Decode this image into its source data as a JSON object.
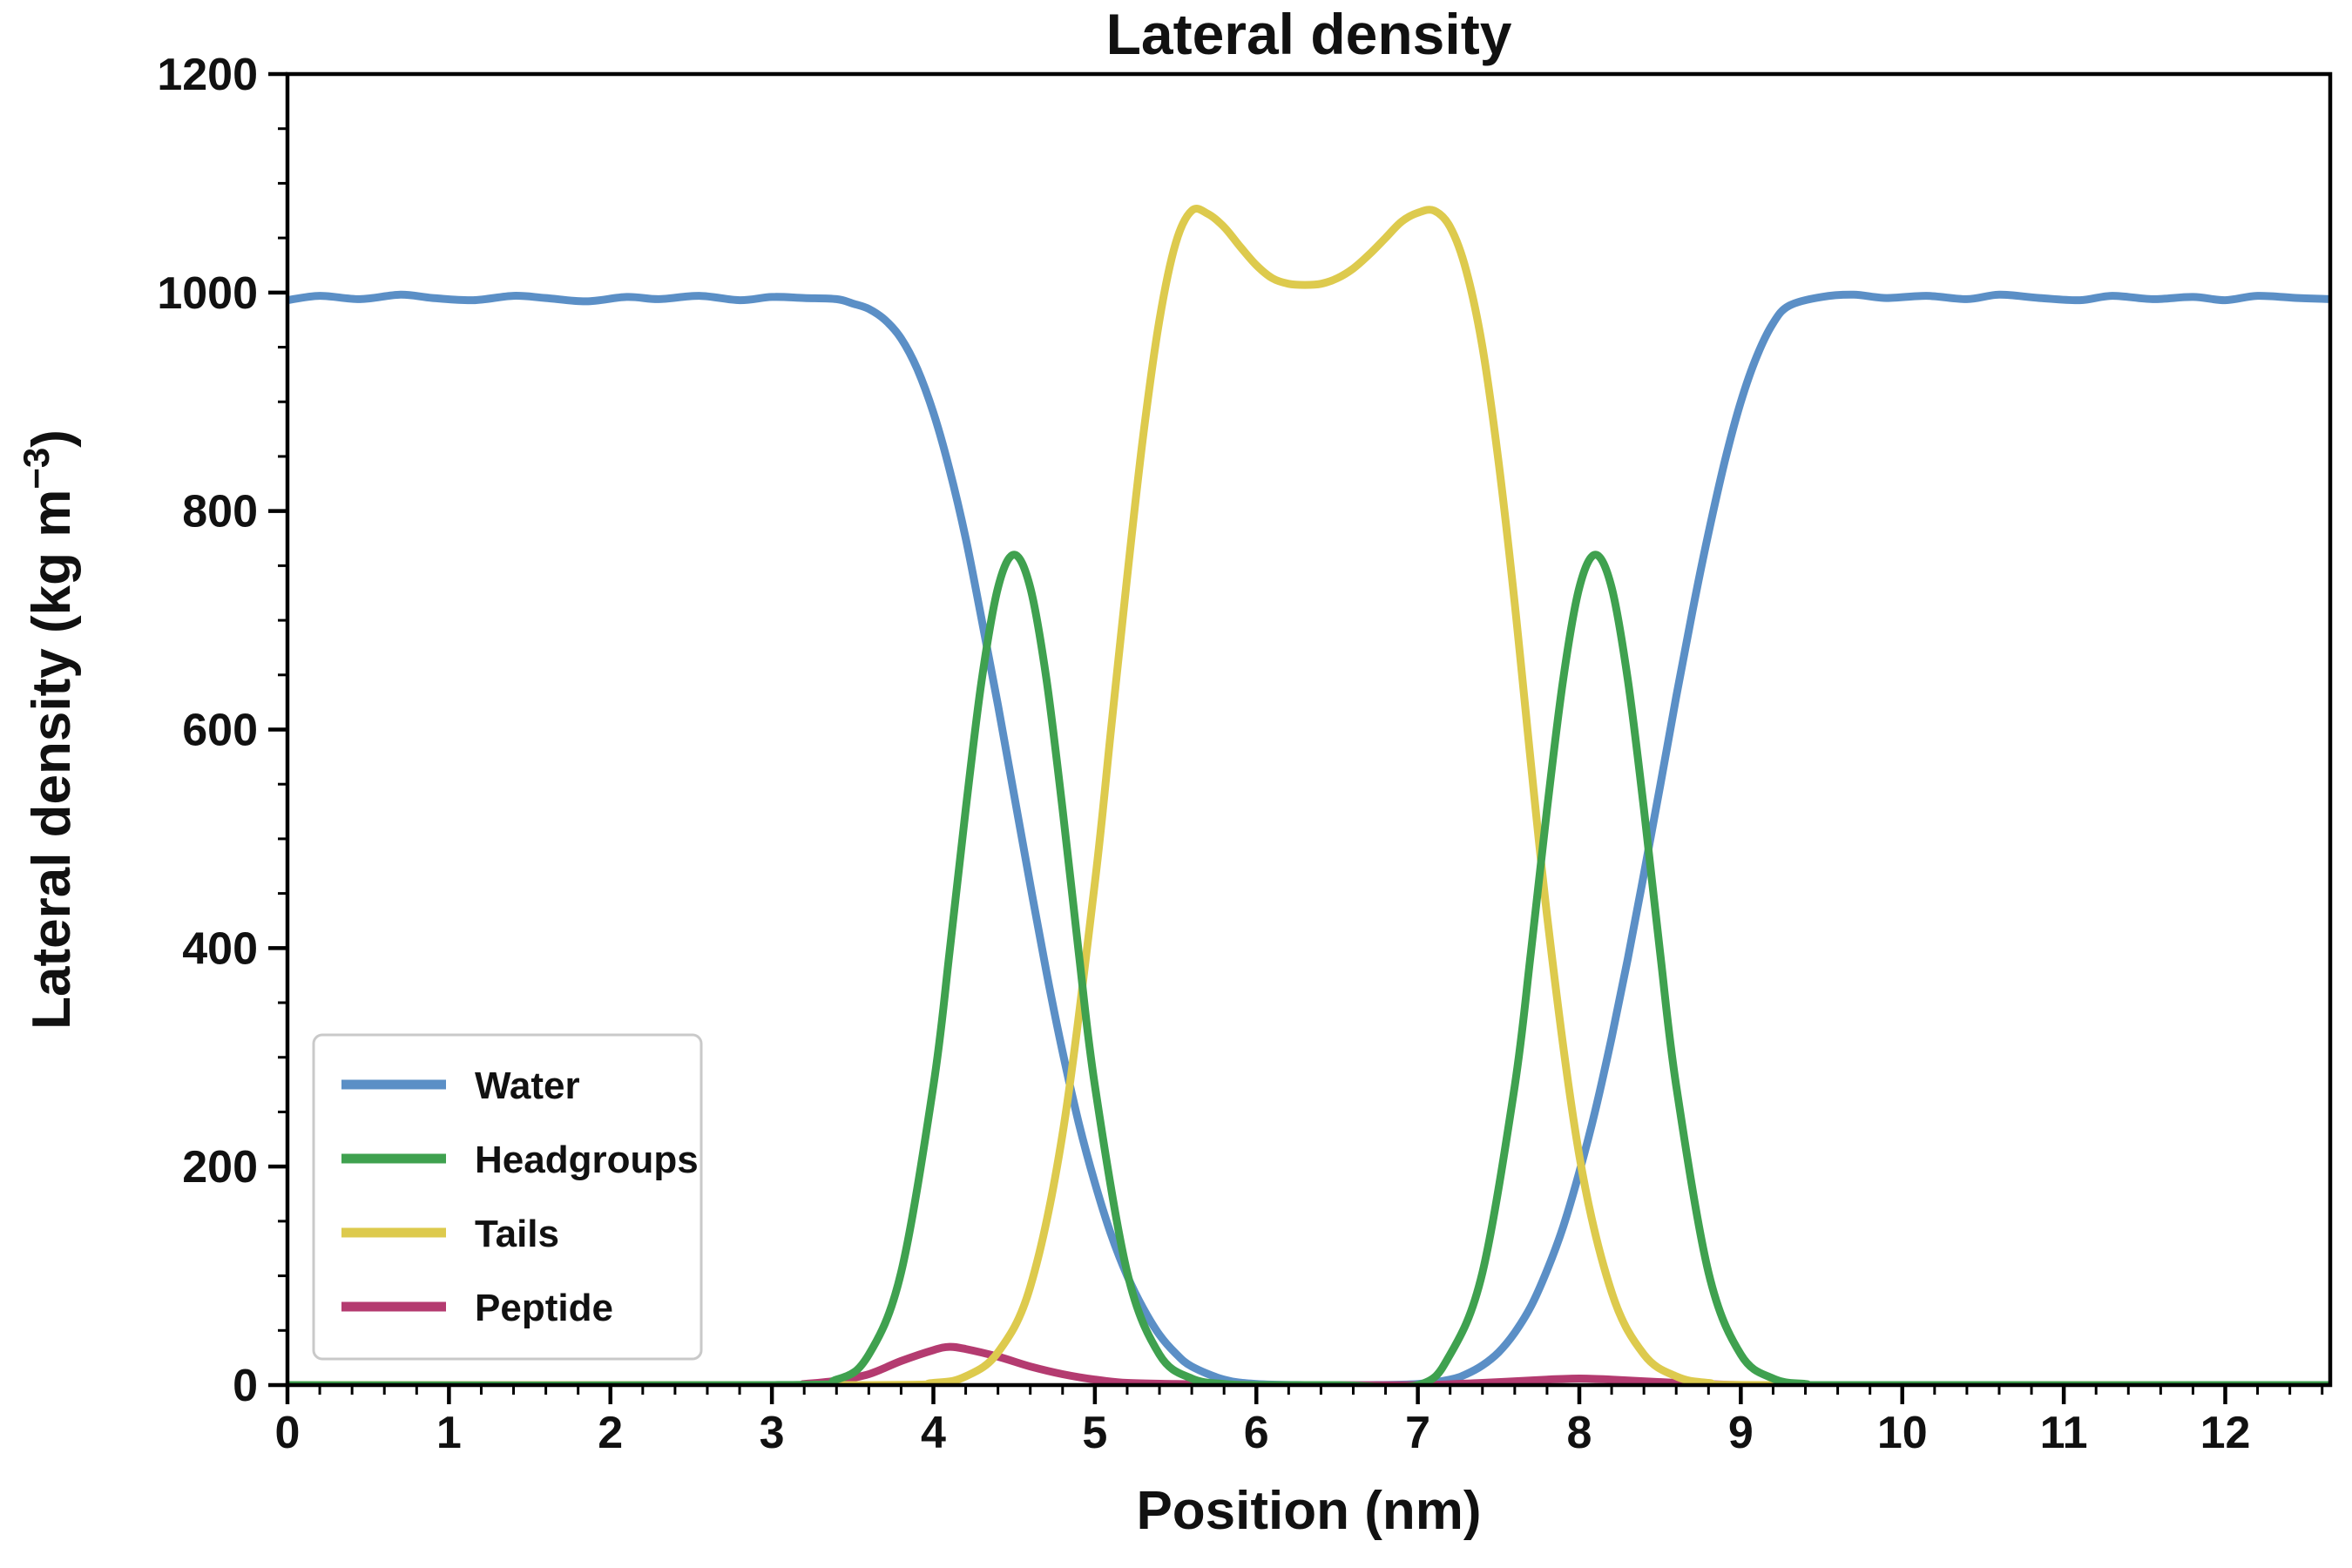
{
  "chart_data": {
    "type": "line",
    "title": "Lateral density",
    "xlabel": "Position (nm)",
    "ylabel": "Lateral density (kg m⁻³)",
    "ylabel_parts": [
      "Lateral density (kg m",
      "−3",
      ")"
    ],
    "xlim": [
      0,
      12.65
    ],
    "ylim": [
      0,
      1200
    ],
    "x_ticks": [
      0,
      1,
      2,
      3,
      4,
      5,
      6,
      7,
      8,
      9,
      10,
      11,
      12
    ],
    "y_ticks": [
      0,
      200,
      400,
      600,
      800,
      1000,
      1200
    ],
    "x_minor_step": 0.2,
    "y_minor_step": 50,
    "grid": false,
    "background": "#ffffff",
    "legend": {
      "position": "lower left",
      "entries": [
        "Water",
        "Headgroups",
        "Tails",
        "Peptide"
      ]
    },
    "series": [
      {
        "name": "Water",
        "color": "#5b8fc6",
        "x": [
          0,
          0.2,
          0.45,
          0.7,
          0.9,
          1.15,
          1.4,
          1.6,
          1.85,
          2.1,
          2.3,
          2.55,
          2.8,
          3.0,
          3.2,
          3.4,
          3.5,
          3.6,
          3.7,
          3.8,
          3.9,
          4.0,
          4.1,
          4.2,
          4.3,
          4.4,
          4.5,
          4.6,
          4.7,
          4.8,
          4.9,
          5.0,
          5.1,
          5.2,
          5.3,
          5.4,
          5.5,
          5.6,
          5.8,
          6.0,
          6.3,
          6.7,
          7.0,
          7.2,
          7.3,
          7.4,
          7.5,
          7.6,
          7.7,
          7.8,
          7.9,
          8.0,
          8.1,
          8.2,
          8.3,
          8.4,
          8.5,
          8.6,
          8.7,
          8.8,
          8.9,
          9.0,
          9.1,
          9.2,
          9.3,
          9.5,
          9.7,
          9.9,
          10.15,
          10.4,
          10.6,
          10.85,
          11.1,
          11.3,
          11.55,
          11.8,
          12.0,
          12.2,
          12.45,
          12.65
        ],
        "y": [
          993,
          997,
          994,
          998,
          995,
          993,
          997,
          995,
          992,
          996,
          994,
          997,
          993,
          996,
          995,
          994,
          990,
          985,
          975,
          958,
          930,
          890,
          838,
          775,
          700,
          622,
          540,
          458,
          378,
          305,
          240,
          185,
          138,
          100,
          70,
          46,
          29,
          17,
          5,
          1,
          0,
          0,
          1,
          5,
          10,
          18,
          30,
          48,
          72,
          105,
          145,
          195,
          252,
          318,
          390,
          468,
          548,
          630,
          708,
          780,
          845,
          900,
          942,
          972,
          988,
          996,
          998,
          995,
          997,
          994,
          998,
          995,
          993,
          997,
          994,
          996,
          993,
          997,
          995,
          994
        ]
      },
      {
        "name": "Headgroups",
        "color": "#3fa14f",
        "x": [
          0,
          3.0,
          3.4,
          3.6,
          3.8,
          4.0,
          4.1,
          4.2,
          4.3,
          4.4,
          4.5,
          4.6,
          4.7,
          4.8,
          4.9,
          5.0,
          5.2,
          5.4,
          5.6,
          5.8,
          6.0,
          6.5,
          7.0,
          7.2,
          7.4,
          7.6,
          7.7,
          7.8,
          7.9,
          8.0,
          8.1,
          8.2,
          8.3,
          8.4,
          8.5,
          8.6,
          8.8,
          9.0,
          9.2,
          9.4,
          9.7,
          12.65
        ],
        "y": [
          0,
          0,
          5,
          28,
          103,
          274,
          396,
          527,
          646,
          730,
          760,
          730,
          646,
          527,
          396,
          274,
          103,
          28,
          6,
          1,
          0,
          0,
          0,
          28,
          103,
          274,
          396,
          527,
          646,
          730,
          760,
          730,
          646,
          527,
          396,
          274,
          103,
          28,
          6,
          1,
          0,
          0
        ]
      },
      {
        "name": "Tails",
        "color": "#ddca4d",
        "x": [
          0,
          3.5,
          4.0,
          4.2,
          4.4,
          4.6,
          4.8,
          5.0,
          5.1,
          5.2,
          5.3,
          5.4,
          5.5,
          5.6,
          5.7,
          5.8,
          5.9,
          6.0,
          6.1,
          6.2,
          6.3,
          6.4,
          6.5,
          6.6,
          6.7,
          6.8,
          6.9,
          7.0,
          7.1,
          7.2,
          7.3,
          7.4,
          7.5,
          7.6,
          7.8,
          8.0,
          8.2,
          8.4,
          8.6,
          8.8,
          9.2,
          12.65
        ],
        "y": [
          0,
          0,
          2,
          8,
          30,
          90,
          230,
          460,
          600,
          740,
          870,
          975,
          1045,
          1075,
          1072,
          1060,
          1042,
          1025,
          1013,
          1008,
          1007,
          1008,
          1013,
          1022,
          1035,
          1050,
          1065,
          1073,
          1075,
          1060,
          1020,
          950,
          845,
          715,
          430,
          210,
          85,
          28,
          8,
          2,
          0,
          0
        ]
      },
      {
        "name": "Peptide",
        "color": "#b43b70",
        "x": [
          0,
          3.0,
          3.2,
          3.4,
          3.6,
          3.8,
          4.0,
          4.1,
          4.2,
          4.4,
          4.6,
          4.8,
          5.0,
          5.2,
          5.5,
          6.0,
          6.5,
          7.0,
          7.4,
          7.8,
          8.0,
          8.2,
          8.6,
          9.0,
          9.4,
          12.65
        ],
        "y": [
          0,
          0,
          1,
          4,
          10,
          22,
          32,
          35,
          33,
          26,
          17,
          10,
          5,
          2,
          1,
          0,
          0,
          0,
          2,
          5,
          6,
          5,
          2,
          0,
          0,
          0
        ]
      }
    ]
  }
}
